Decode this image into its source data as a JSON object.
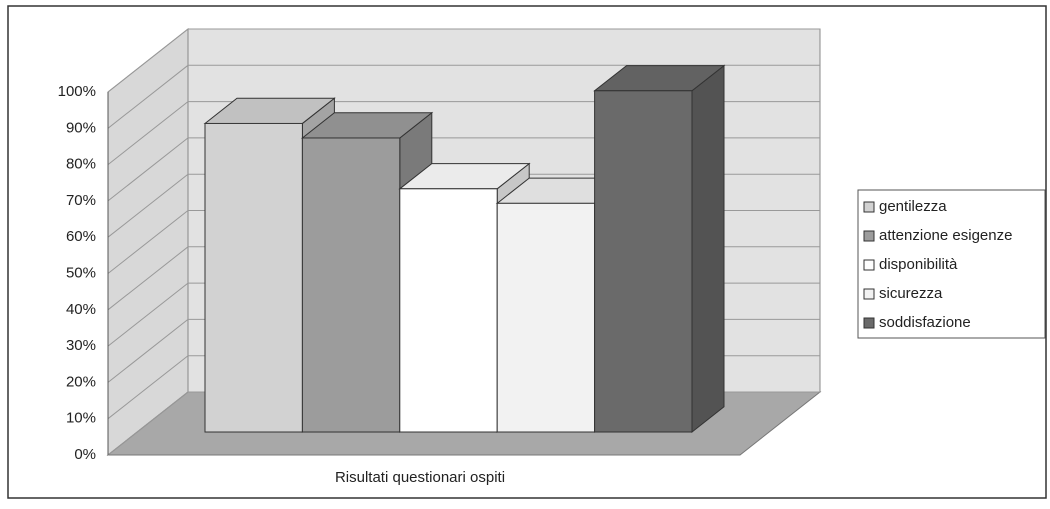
{
  "chart_data": {
    "type": "bar3d",
    "categories": [
      "Risultati questionari ospiti"
    ],
    "series": [
      {
        "name": "gentilezza",
        "color": "#d2d2d2",
        "values": [
          85
        ]
      },
      {
        "name": "attenzione esigenze",
        "color": "#9c9c9c",
        "values": [
          81
        ]
      },
      {
        "name": "disponibilità",
        "color": "#ffffff",
        "values": [
          67
        ]
      },
      {
        "name": "sicurezza",
        "color": "#f2f2f2",
        "values": [
          63
        ]
      },
      {
        "name": "soddisfazione",
        "color": "#6a6a6a",
        "values": [
          94
        ]
      }
    ],
    "ylim": [
      0,
      100
    ],
    "yticks": [
      {
        "value": 0,
        "label": "0%"
      },
      {
        "value": 10,
        "label": "10%"
      },
      {
        "value": 20,
        "label": "20%"
      },
      {
        "value": 30,
        "label": "30%"
      },
      {
        "value": 40,
        "label": "40%"
      },
      {
        "value": 50,
        "label": "50%"
      },
      {
        "value": 60,
        "label": "60%"
      },
      {
        "value": 70,
        "label": "70%"
      },
      {
        "value": 80,
        "label": "80%"
      },
      {
        "value": 90,
        "label": "90%"
      },
      {
        "value": 100,
        "label": "100%"
      }
    ],
    "grid": true,
    "legend": "right"
  }
}
